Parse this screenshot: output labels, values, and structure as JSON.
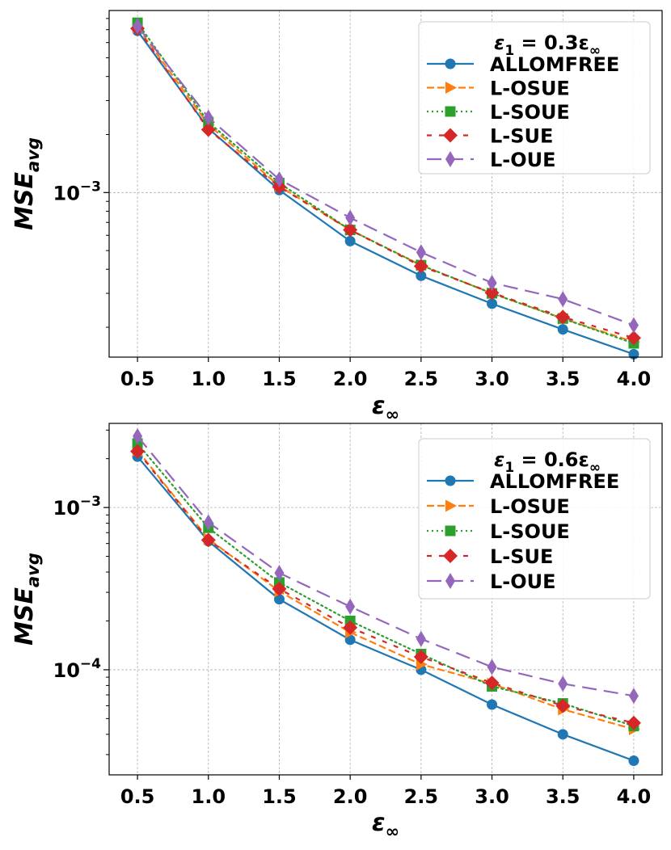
{
  "chart_data": [
    {
      "type": "line",
      "x": [
        0.5,
        1.0,
        1.5,
        2.0,
        2.5,
        3.0,
        3.5,
        4.0
      ],
      "x_tick_labels": [
        "0.5",
        "1.0",
        "1.5",
        "2.0",
        "2.5",
        "3.0",
        "3.5",
        "4.0"
      ],
      "xlabel_base": "ε",
      "xlabel_sub": "∞",
      "ylabel_base": "MSE",
      "ylabel_sub": "avg",
      "yscale": "log",
      "ylim": [
        0.00014,
        0.0088
      ],
      "y_ticks": [
        {
          "value": 0.001,
          "base": "10",
          "exp": "−3"
        }
      ],
      "grid": true,
      "legend_position": "top-right",
      "legend_title": {
        "base": "ε",
        "sub": "1",
        "rest": "  = 0.3ε",
        "rest_sub": "∞"
      },
      "series": [
        {
          "name": "ALLOMFREE",
          "color": "#1f77b4",
          "dash": "",
          "marker": "circle",
          "values": [
            0.0069,
            0.00215,
            0.00103,
            0.00056,
            0.00037,
            0.000265,
            0.000195,
            0.000145
          ]
        },
        {
          "name": "L-OSUE",
          "color": "#ff7f0e",
          "dash": "9 4",
          "marker": "triangle-right",
          "values": [
            0.0072,
            0.00225,
            0.00108,
            0.00064,
            0.00042,
            0.0003,
            0.000222,
            0.000168
          ]
        },
        {
          "name": "L-SOUE",
          "color": "#2ca02c",
          "dash": "2 4",
          "marker": "square",
          "values": [
            0.0076,
            0.00232,
            0.00112,
            0.00064,
            0.00042,
            0.0003,
            0.000222,
            0.000165
          ]
        },
        {
          "name": "L-SUE",
          "color": "#d62728",
          "dash": "6 9",
          "marker": "diamond",
          "values": [
            0.0071,
            0.00212,
            0.00107,
            0.00064,
            0.000415,
            0.000302,
            0.000226,
            0.000176
          ]
        },
        {
          "name": "L-OUE",
          "color": "#9467bd",
          "dash": "18 9",
          "marker": "thin-diamond",
          "values": [
            0.0073,
            0.00245,
            0.00117,
            0.00074,
            0.00049,
            0.00034,
            0.00028,
            0.000205
          ]
        }
      ]
    },
    {
      "type": "line",
      "x": [
        0.5,
        1.0,
        1.5,
        2.0,
        2.5,
        3.0,
        3.5,
        4.0
      ],
      "x_tick_labels": [
        "0.5",
        "1.0",
        "1.5",
        "2.0",
        "2.5",
        "3.0",
        "3.5",
        "4.0"
      ],
      "xlabel_base": "ε",
      "xlabel_sub": "∞",
      "ylabel_base": "MSE",
      "ylabel_sub": "avg",
      "yscale": "log",
      "ylim": [
        2.25e-05,
        0.0033
      ],
      "y_ticks": [
        {
          "value": 0.001,
          "base": "10",
          "exp": "−3"
        },
        {
          "value": 0.0001,
          "base": "10",
          "exp": "−4"
        }
      ],
      "grid": true,
      "legend_position": "top-right",
      "legend_title": {
        "base": "ε",
        "sub": "1",
        "rest": "  = 0.6ε",
        "rest_sub": "∞"
      },
      "series": [
        {
          "name": "ALLOMFREE",
          "color": "#1f77b4",
          "dash": "",
          "marker": "circle",
          "values": [
            0.00206,
            0.00062,
            0.000272,
            0.000153,
            0.0001,
            6.1e-05,
            4e-05,
            2.75e-05
          ]
        },
        {
          "name": "L-OSUE",
          "color": "#ff7f0e",
          "dash": "9 4",
          "marker": "triangle-right",
          "values": [
            0.00225,
            0.00064,
            0.000305,
            0.00017,
            0.000108,
            8.2e-05,
            5.7e-05,
            4.3e-05
          ]
        },
        {
          "name": "L-SOUE",
          "color": "#2ca02c",
          "dash": "2 4",
          "marker": "square",
          "values": [
            0.00248,
            0.00075,
            0.000345,
            0.0002,
            0.000125,
            7.9e-05,
            6.2e-05,
            4.5e-05
          ]
        },
        {
          "name": "L-SUE",
          "color": "#d62728",
          "dash": "6 9",
          "marker": "diamond",
          "values": [
            0.00222,
            0.00063,
            0.000315,
            0.000182,
            0.00012,
            8.3e-05,
            6e-05,
            4.7e-05
          ]
        },
        {
          "name": "L-OUE",
          "color": "#9467bd",
          "dash": "18 9",
          "marker": "thin-diamond",
          "values": [
            0.00275,
            0.00081,
            0.000395,
            0.000245,
            0.000155,
            0.000104,
            8.2e-05,
            6.9e-05
          ]
        }
      ]
    }
  ]
}
